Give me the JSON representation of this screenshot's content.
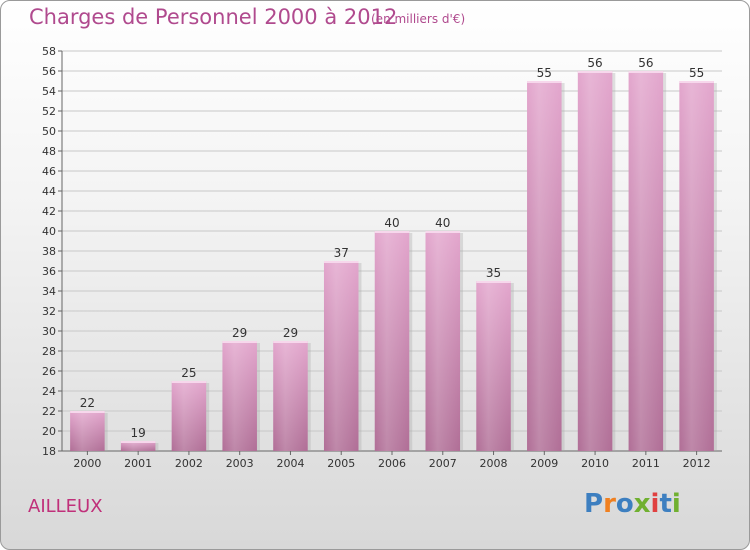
{
  "header": {
    "title": "Charges de Personnel 2000 à 2012",
    "subtitle": "(en milliers d'€)"
  },
  "footer": {
    "commune": "AILLEUX",
    "logo": "Proxiti"
  },
  "colors": {
    "bar_top": "#e3a6cd",
    "bar_bottom": "#b06e96",
    "title": "#b04a8e",
    "commune": "#c0307a",
    "logo_letters": [
      "#3d7fc0",
      "#f08020",
      "#3d7fc0",
      "#70b030",
      "#e04040",
      "#3d7fc0",
      "#70b030"
    ]
  },
  "chart_data": {
    "type": "bar",
    "categories": [
      "2000",
      "2001",
      "2002",
      "2003",
      "2004",
      "2005",
      "2006",
      "2007",
      "2008",
      "2009",
      "2010",
      "2011",
      "2012"
    ],
    "values": [
      22,
      19,
      25,
      29,
      29,
      37,
      40,
      40,
      35,
      55,
      56,
      56,
      55
    ],
    "title": "Charges de Personnel 2000 à 2012",
    "subtitle": "(en milliers d'€)",
    "xlabel": "",
    "ylabel": "",
    "ylim": [
      18,
      58
    ],
    "yticks": [
      18,
      20,
      22,
      24,
      26,
      28,
      30,
      32,
      34,
      36,
      38,
      40,
      42,
      44,
      46,
      48,
      50,
      52,
      54,
      56,
      58
    ],
    "grid": true,
    "data_labels": true
  }
}
